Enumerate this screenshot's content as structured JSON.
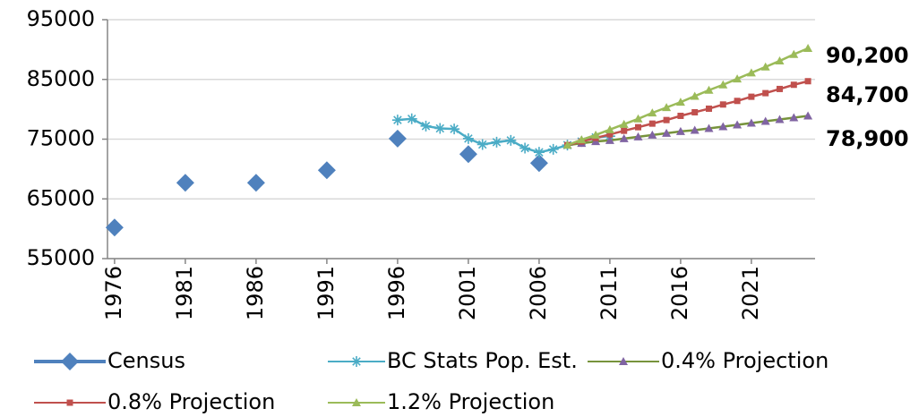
{
  "chart_data": {
    "type": "line",
    "xlim": [
      1975.5,
      2025.5
    ],
    "xticks": [
      1976,
      1981,
      1986,
      1991,
      1996,
      2001,
      2006,
      2011,
      2016,
      2021
    ],
    "ylim": [
      55000,
      95000
    ],
    "yticks": [
      55000,
      65000,
      75000,
      85000,
      95000
    ],
    "grid": true,
    "legend": "bottom",
    "series": [
      {
        "name": "Census",
        "color": "#4f81bd",
        "marker": "diamond",
        "line": false,
        "x": [
          1976,
          1981,
          1986,
          1991,
          1996,
          2001,
          2006
        ],
        "values": [
          60200,
          67700,
          67700,
          69800,
          75100,
          72500,
          71000
        ]
      },
      {
        "name": "BC Stats Pop. Est.",
        "color": "#4bacc6",
        "marker": "asterisk",
        "line": true,
        "x": [
          1996,
          1997,
          1998,
          1999,
          2000,
          2001,
          2002,
          2003,
          2004,
          2005,
          2006,
          2007,
          2008,
          2009,
          2010,
          2011
        ],
        "values": [
          78200,
          78400,
          77200,
          76800,
          76700,
          75100,
          74100,
          74500,
          74800,
          73500,
          72800,
          73300,
          74000,
          74600,
          75300,
          75500
        ]
      },
      {
        "name": "0.4% Projection",
        "color": "#77933c",
        "marker_color": "#8064a2",
        "marker": "triangle",
        "line": true,
        "x": [
          2008,
          2009,
          2010,
          2011,
          2012,
          2013,
          2014,
          2015,
          2016,
          2017,
          2018,
          2019,
          2020,
          2021,
          2022,
          2023,
          2024,
          2025
        ],
        "values": [
          74000,
          74300,
          74600,
          74800,
          75100,
          75400,
          75700,
          76000,
          76300,
          76500,
          76800,
          77100,
          77400,
          77700,
          78000,
          78300,
          78600,
          78900
        ],
        "value_labels": [
          null,
          null,
          null,
          null,
          null,
          null,
          null,
          null,
          null,
          null,
          null,
          null,
          null,
          null,
          null,
          null,
          null,
          "78,900"
        ]
      },
      {
        "name": "0.8% Projection",
        "color": "#c0504d",
        "marker": "square",
        "line": true,
        "x": [
          2008,
          2009,
          2010,
          2011,
          2012,
          2013,
          2014,
          2015,
          2016,
          2017,
          2018,
          2019,
          2020,
          2021,
          2022,
          2023,
          2024,
          2025
        ],
        "values": [
          74000,
          74600,
          75200,
          75800,
          76400,
          77000,
          77600,
          78200,
          78900,
          79500,
          80100,
          80800,
          81400,
          82100,
          82700,
          83400,
          84100,
          84700
        ],
        "value_labels": [
          null,
          null,
          null,
          null,
          null,
          null,
          null,
          null,
          null,
          null,
          null,
          null,
          null,
          null,
          null,
          null,
          null,
          "84,700"
        ]
      },
      {
        "name": "1.2% Projection",
        "color": "#9bbb59",
        "marker": "triangle",
        "line": true,
        "x": [
          2008,
          2009,
          2010,
          2011,
          2012,
          2013,
          2014,
          2015,
          2016,
          2017,
          2018,
          2019,
          2020,
          2021,
          2022,
          2023,
          2024,
          2025
        ],
        "values": [
          74000,
          74900,
          75700,
          76600,
          77500,
          78400,
          79400,
          80300,
          81200,
          82200,
          83200,
          84100,
          85100,
          86100,
          87100,
          88100,
          89200,
          90200
        ],
        "value_labels": [
          null,
          null,
          null,
          null,
          null,
          null,
          null,
          null,
          null,
          null,
          null,
          null,
          null,
          null,
          null,
          null,
          null,
          "90,200"
        ]
      }
    ]
  }
}
